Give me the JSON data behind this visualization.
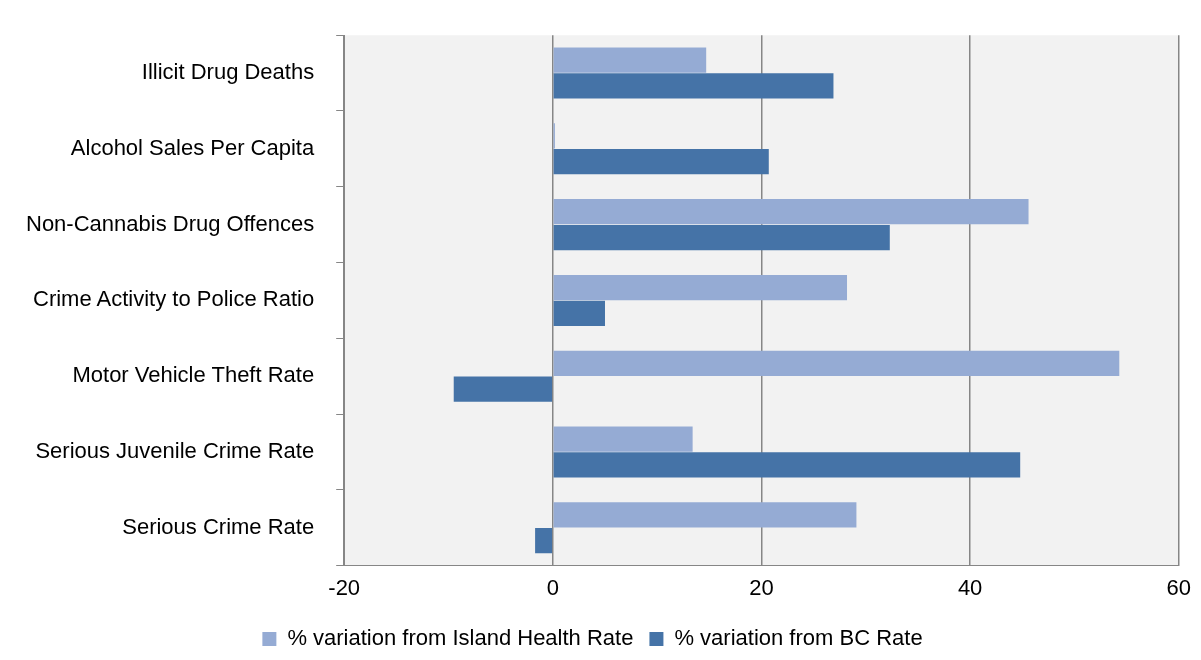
{
  "chart_data": {
    "type": "bar",
    "orientation": "horizontal",
    "categories": [
      "Illicit Drug Deaths",
      "Alcohol Sales Per Capita",
      "Non-Cannabis Drug Offences",
      "Crime Activity to Police Ratio",
      "Motor Vehicle Theft Rate",
      "Serious Juvenile Crime Rate",
      "Serious Crime Rate"
    ],
    "series": [
      {
        "name": "% variation from Island Health Rate",
        "color": "#95abd4",
        "values": [
          14.7,
          0.2,
          45.6,
          28.2,
          54.3,
          13.4,
          29.1
        ]
      },
      {
        "name": "% variation from BC Rate",
        "color": "#4573a7",
        "values": [
          26.9,
          20.7,
          32.3,
          5.0,
          -9.5,
          44.8,
          -1.7
        ]
      }
    ],
    "xlim": [
      -20,
      60
    ],
    "xticks": [
      -20,
      0,
      20,
      40,
      60
    ],
    "grid": "x",
    "legend": "bottom"
  }
}
